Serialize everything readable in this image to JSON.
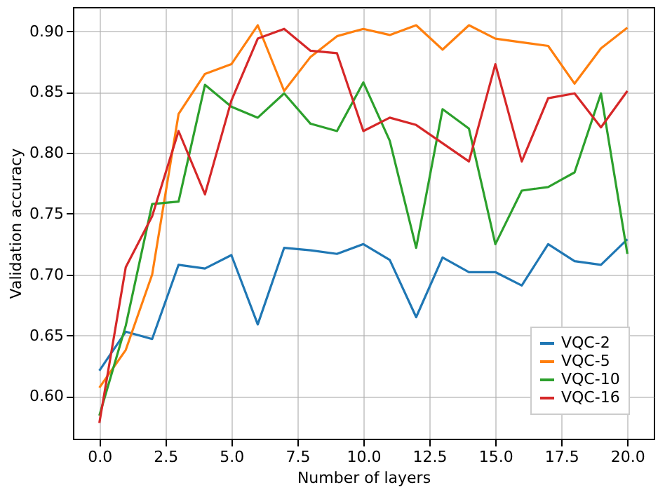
{
  "chart_data": {
    "type": "line",
    "xlabel": "Number of layers",
    "ylabel": "Validation accuracy",
    "x": [
      0,
      1,
      2,
      3,
      4,
      5,
      6,
      7,
      8,
      9,
      10,
      11,
      12,
      13,
      14,
      15,
      16,
      17,
      18,
      19,
      20
    ],
    "series": [
      {
        "name": "VQC-2",
        "color": "#1f77b4",
        "values": [
          0.621,
          0.653,
          0.647,
          0.708,
          0.705,
          0.716,
          0.659,
          0.722,
          0.72,
          0.717,
          0.725,
          0.712,
          0.665,
          0.714,
          0.702,
          0.702,
          0.691,
          0.725,
          0.711,
          0.708,
          0.729
        ]
      },
      {
        "name": "VQC-5",
        "color": "#ff7f0e",
        "values": [
          0.607,
          0.638,
          0.7,
          0.832,
          0.865,
          0.873,
          0.905,
          0.851,
          0.879,
          0.896,
          0.902,
          0.897,
          0.905,
          0.885,
          0.905,
          0.894,
          0.891,
          0.888,
          0.857,
          0.886,
          0.903
        ]
      },
      {
        "name": "VQC-10",
        "color": "#2ca02c",
        "values": [
          0.584,
          0.658,
          0.758,
          0.76,
          0.856,
          0.838,
          0.829,
          0.849,
          0.824,
          0.818,
          0.858,
          0.81,
          0.722,
          0.836,
          0.82,
          0.725,
          0.769,
          0.772,
          0.784,
          0.849,
          0.717
        ]
      },
      {
        "name": "VQC-16",
        "color": "#d62728",
        "values": [
          0.578,
          0.706,
          0.748,
          0.818,
          0.766,
          0.843,
          0.894,
          0.902,
          0.884,
          0.882,
          0.818,
          0.829,
          0.823,
          0.808,
          0.793,
          0.873,
          0.793,
          0.845,
          0.849,
          0.821,
          0.851
        ]
      }
    ],
    "xlim": [
      -1,
      21
    ],
    "ylim": [
      0.565,
      0.92
    ],
    "xticks": [
      {
        "value": 0,
        "label": "0.0"
      },
      {
        "value": 2.5,
        "label": "2.5"
      },
      {
        "value": 5,
        "label": "5.0"
      },
      {
        "value": 7.5,
        "label": "7.5"
      },
      {
        "value": 10,
        "label": "10.0"
      },
      {
        "value": 12.5,
        "label": "12.5"
      },
      {
        "value": 15,
        "label": "15.0"
      },
      {
        "value": 17.5,
        "label": "17.5"
      },
      {
        "value": 20,
        "label": "20.0"
      }
    ],
    "yticks": [
      {
        "value": 0.6,
        "label": "0.60"
      },
      {
        "value": 0.65,
        "label": "0.65"
      },
      {
        "value": 0.7,
        "label": "0.70"
      },
      {
        "value": 0.75,
        "label": "0.75"
      },
      {
        "value": 0.8,
        "label": "0.80"
      },
      {
        "value": 0.85,
        "label": "0.85"
      },
      {
        "value": 0.9,
        "label": "0.90"
      }
    ],
    "grid": true,
    "legend": "bottom right",
    "marker": "none",
    "line_style": "solid"
  }
}
